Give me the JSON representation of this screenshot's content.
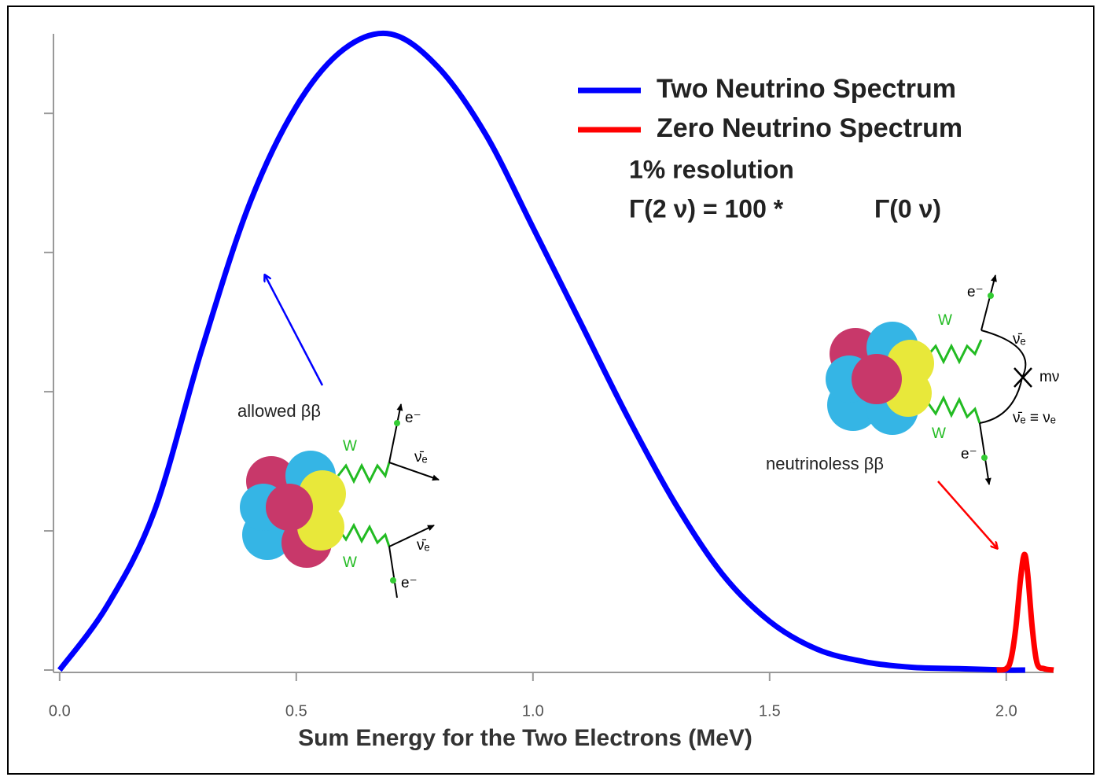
{
  "chart_data": {
    "type": "line",
    "x_label": "Sum Energy for the Two Electrons (MeV)",
    "xlim": [
      -0.013,
      2.1
    ],
    "xticks": [
      {
        "value": 0,
        "label": "0.0"
      },
      0.5,
      {
        "value": 1,
        "label": "1.0"
      },
      1.5,
      {
        "value": 2,
        "label": "2.0"
      }
    ],
    "ylim": [
      0,
      4.6
    ],
    "yticks": [
      0,
      1,
      2,
      3,
      4
    ],
    "series": [
      {
        "name": "Two Neutrino Spectrum",
        "color": "#0000ff",
        "x": [
          0,
          0.1,
          0.2,
          0.3,
          0.4,
          0.5,
          0.6,
          0.7,
          0.8,
          0.9,
          1.0,
          1.1,
          1.2,
          1.3,
          1.4,
          1.5,
          1.6,
          1.7,
          1.8,
          1.9,
          2.0,
          2.04
        ],
        "values": [
          0,
          0.46,
          1.14,
          2.3,
          3.34,
          4.05,
          4.46,
          4.57,
          4.33,
          3.85,
          3.18,
          2.5,
          1.82,
          1.2,
          0.69,
          0.35,
          0.15,
          0.06,
          0.02,
          0.01,
          0,
          0
        ]
      },
      {
        "name": "Zero Neutrino Spectrum",
        "color": "#ff0000",
        "x": [
          1.98,
          2.0,
          2.01,
          2.02,
          2.03,
          2.038,
          2.045,
          2.055,
          2.065,
          2.08,
          2.1
        ],
        "values": [
          0,
          0.01,
          0.08,
          0.3,
          0.65,
          0.83,
          0.7,
          0.3,
          0.05,
          0.01,
          0
        ]
      }
    ],
    "annotations": [
      "1% resolution",
      "Γ(2 ν) = 100 *",
      "Γ(0 ν)",
      "allowed ββ",
      "neutrinoless ββ"
    ],
    "diagram_labels": [
      "W",
      "W",
      "e⁻",
      "e⁻",
      "ν̄ₑ",
      "ν̄ₑ",
      "W",
      "W",
      "e⁻",
      "e⁻",
      "ν̄ₑ",
      "mν",
      "ν̄ₑ ≡ νₑ"
    ]
  }
}
